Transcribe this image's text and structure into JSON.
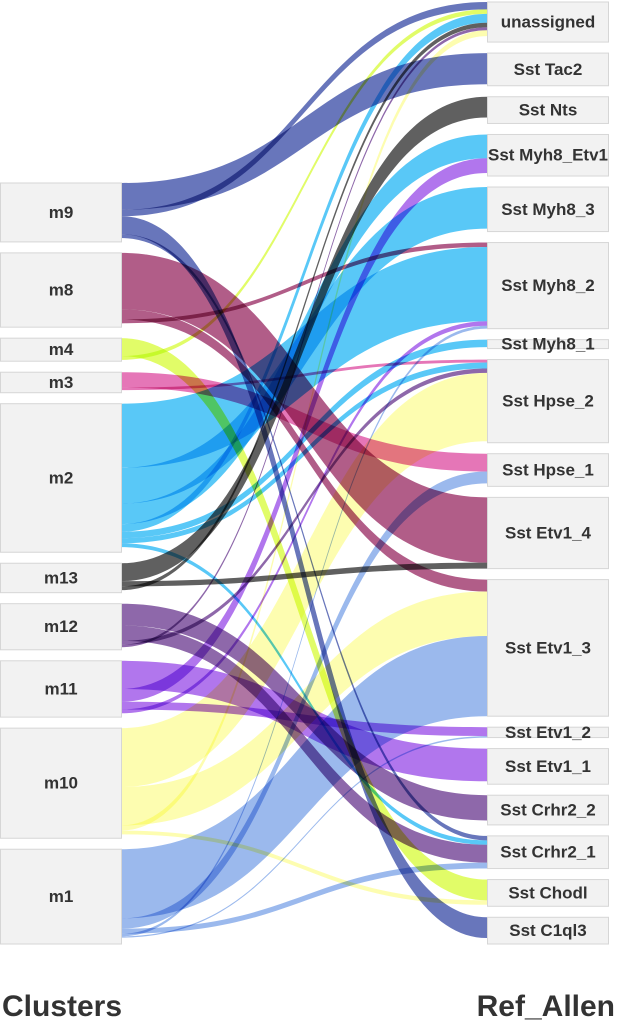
{
  "left_axis_title": "Clusters",
  "right_axis_title": "Ref_Allen",
  "colors": {
    "unassigned": "#c8c8c8",
    "Sst Tac2": "#3e4fa8",
    "Sst Nts": "#333333",
    "Sst Myh8_Etv1": "#2ab8f5",
    "Sst Myh8_3": "#2ab8f5",
    "Sst Myh8_2": "#2ab8f5",
    "Sst Myh8_1": "#2ab8f5",
    "Sst Hpse_2": "#fdfd9a",
    "Sst Hpse_1": "#de4fa3",
    "Sst Etv1_4": "#9b2f66",
    "Sst Etv1_3": "#7fa5e8",
    "Sst Etv1_2": "#9b4fe8",
    "Sst Etv1_1": "#9b4fe8",
    "Sst Crhr2_2": "#6e3e92",
    "Sst Crhr2_1": "#6e3e92",
    "Sst Chodl": "#d9fb3e",
    "Sst C1ql3": "#3e4fa8"
  },
  "left_nodes": [
    {
      "name": "m9",
      "size": 46
    },
    {
      "name": "m8",
      "size": 58
    },
    {
      "name": "m4",
      "size": 18
    },
    {
      "name": "m3",
      "size": 16
    },
    {
      "name": "m2",
      "size": 116
    },
    {
      "name": "m13",
      "size": 23
    },
    {
      "name": "m12",
      "size": 36
    },
    {
      "name": "m11",
      "size": 44
    },
    {
      "name": "m10",
      "size": 86
    },
    {
      "name": "m1",
      "size": 74
    }
  ],
  "right_nodes": [
    {
      "name": "unassigned",
      "size": 27
    },
    {
      "name": "Sst Tac2",
      "size": 22
    },
    {
      "name": "Sst Nts",
      "size": 18
    },
    {
      "name": "Sst Myh8_Etv1",
      "size": 28
    },
    {
      "name": "Sst Myh8_3",
      "size": 30
    },
    {
      "name": "Sst Myh8_2",
      "size": 58
    },
    {
      "name": "Sst Myh8_1",
      "size": 6
    },
    {
      "name": "Sst Hpse_2",
      "size": 56
    },
    {
      "name": "Sst Hpse_1",
      "size": 22
    },
    {
      "name": "Sst Etv1_4",
      "size": 48
    },
    {
      "name": "Sst Etv1_3",
      "size": 92
    },
    {
      "name": "Sst Etv1_2",
      "size": 7
    },
    {
      "name": "Sst Etv1_1",
      "size": 24
    },
    {
      "name": "Sst Crhr2_2",
      "size": 20
    },
    {
      "name": "Sst Crhr2_1",
      "size": 22
    },
    {
      "name": "Sst Chodl",
      "size": 18
    },
    {
      "name": "Sst C1ql3",
      "size": 18
    }
  ],
  "links": [
    {
      "source": "m9",
      "target": "Sst Tac2",
      "value": 21,
      "color": "Sst Tac2"
    },
    {
      "source": "m9",
      "target": "unassigned",
      "value": 5,
      "color": "Sst Tac2"
    },
    {
      "source": "m9",
      "target": "Sst C1ql3",
      "value": 14,
      "color": "Sst C1ql3"
    },
    {
      "source": "m9",
      "target": "Sst Crhr2_1",
      "value": 3,
      "color": "Sst C1ql3"
    },
    {
      "source": "m8",
      "target": "Sst Etv1_4",
      "value": 44,
      "color": "Sst Etv1_4"
    },
    {
      "source": "m8",
      "target": "Sst Etv1_3",
      "value": 8,
      "color": "Sst Etv1_4"
    },
    {
      "source": "m8",
      "target": "Sst Myh8_2",
      "value": 3,
      "color": "Sst Etv1_4"
    },
    {
      "source": "m4",
      "target": "Sst Chodl",
      "value": 14,
      "color": "Sst Chodl"
    },
    {
      "source": "m4",
      "target": "unassigned",
      "value": 3,
      "color": "Sst Chodl"
    },
    {
      "source": "m3",
      "target": "Sst Hpse_1",
      "value": 12,
      "color": "Sst Hpse_1"
    },
    {
      "source": "m3",
      "target": "Sst Hpse_2",
      "value": 2,
      "color": "Sst Hpse_1"
    },
    {
      "source": "m2",
      "target": "Sst Myh8_2",
      "value": 50,
      "color": "Sst Myh8_2"
    },
    {
      "source": "m2",
      "target": "Sst Myh8_3",
      "value": 28,
      "color": "Sst Myh8_3"
    },
    {
      "source": "m2",
      "target": "Sst Myh8_Etv1",
      "value": 16,
      "color": "Sst Myh8_Etv1"
    },
    {
      "source": "m2",
      "target": "unassigned",
      "value": 6,
      "color": "Sst Myh8_Etv1"
    },
    {
      "source": "m2",
      "target": "Sst Myh8_1",
      "value": 5,
      "color": "Sst Myh8_1"
    },
    {
      "source": "m2",
      "target": "Sst Hpse_2",
      "value": 4,
      "color": "Sst Myh8_1"
    },
    {
      "source": "m2",
      "target": "Sst Crhr2_1",
      "value": 3,
      "color": "Sst Myh8_1"
    },
    {
      "source": "m13",
      "target": "Sst Nts",
      "value": 14,
      "color": "Sst Nts"
    },
    {
      "source": "m13",
      "target": "Sst Etv1_4",
      "value": 4,
      "color": "Sst Nts"
    },
    {
      "source": "m13",
      "target": "unassigned",
      "value": 3,
      "color": "Sst Nts"
    },
    {
      "source": "m12",
      "target": "Sst Crhr2_2",
      "value": 17,
      "color": "Sst Crhr2_2"
    },
    {
      "source": "m12",
      "target": "Sst Crhr2_1",
      "value": 12,
      "color": "Sst Crhr2_1"
    },
    {
      "source": "m12",
      "target": "Sst Hpse_2",
      "value": 3,
      "color": "Sst Crhr2_2"
    },
    {
      "source": "m12",
      "target": "unassigned",
      "value": 2,
      "color": "Sst Crhr2_2"
    },
    {
      "source": "m11",
      "target": "Sst Etv1_1",
      "value": 22,
      "color": "Sst Etv1_1"
    },
    {
      "source": "m11",
      "target": "Sst Myh8_Etv1",
      "value": 10,
      "color": "Sst Etv1_1"
    },
    {
      "source": "m11",
      "target": "Sst Etv1_2",
      "value": 6,
      "color": "Sst Etv1_2"
    },
    {
      "source": "m11",
      "target": "Sst Myh8_2",
      "value": 3,
      "color": "Sst Etv1_1"
    },
    {
      "source": "m10",
      "target": "Sst Hpse_2",
      "value": 46,
      "color": "Sst Hpse_2"
    },
    {
      "source": "m10",
      "target": "Sst Etv1_3",
      "value": 30,
      "color": "Sst Hpse_2"
    },
    {
      "source": "m10",
      "target": "unassigned",
      "value": 4,
      "color": "Sst Hpse_2"
    },
    {
      "source": "m10",
      "target": "Sst Chodl",
      "value": 3,
      "color": "Sst Hpse_2"
    },
    {
      "source": "m1",
      "target": "Sst Etv1_3",
      "value": 54,
      "color": "Sst Etv1_3"
    },
    {
      "source": "m1",
      "target": "Sst Hpse_1",
      "value": 8,
      "color": "Sst Etv1_3"
    },
    {
      "source": "m1",
      "target": "Sst Crhr2_1",
      "value": 4,
      "color": "Sst Etv1_3"
    },
    {
      "source": "m1",
      "target": "Sst Myh8_2",
      "value": 2,
      "color": "Sst Etv1_3"
    },
    {
      "source": "m1",
      "target": "Sst Etv1_2",
      "value": 1,
      "color": "Sst Etv1_3"
    }
  ]
}
